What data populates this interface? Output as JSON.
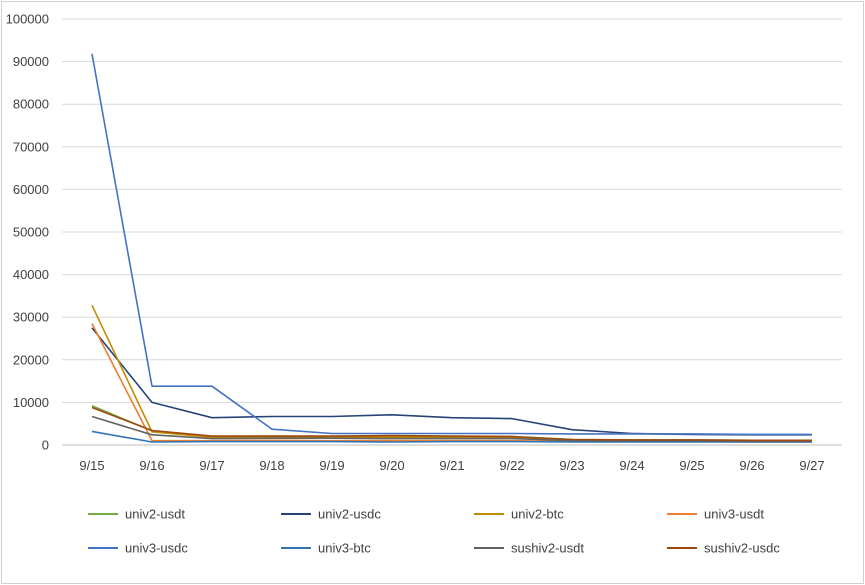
{
  "chart_data": {
    "type": "line",
    "title": "",
    "xlabel": "",
    "ylabel": "",
    "grid": true,
    "legend_position": "bottom",
    "ylim": [
      0,
      100000
    ],
    "y_ticks": [
      "0",
      "10000",
      "20000",
      "30000",
      "40000",
      "50000",
      "60000",
      "70000",
      "80000",
      "90000",
      "100000"
    ],
    "categories": [
      "9/15",
      "9/16",
      "9/17",
      "9/18",
      "9/19",
      "9/20",
      "9/21",
      "9/22",
      "9/23",
      "9/24",
      "9/25",
      "9/26",
      "9/27"
    ],
    "series": [
      {
        "name": "univ2-usdt",
        "color": "#70ad47",
        "values": [
          9200,
          3300,
          2000,
          2100,
          2000,
          2100,
          2000,
          2000,
          1300,
          1200,
          1200,
          1100,
          1100
        ]
      },
      {
        "name": "univ2-usdc",
        "color": "#264478",
        "values": [
          27500,
          10000,
          6400,
          6700,
          6700,
          7100,
          6400,
          6200,
          3600,
          2700,
          2500,
          2400,
          2400
        ]
      },
      {
        "name": "univ2-btc",
        "color": "#c38d00",
        "values": [
          32800,
          3100,
          1800,
          1900,
          1800,
          1800,
          1700,
          1700,
          1200,
          1100,
          1100,
          1000,
          1000
        ]
      },
      {
        "name": "univ3-usdt",
        "color": "#ed7d31",
        "values": [
          28500,
          1000,
          1000,
          1100,
          1000,
          1000,
          1000,
          1000,
          800,
          800,
          800,
          700,
          700
        ]
      },
      {
        "name": "univ3-usdc",
        "color": "#4472c4",
        "values": [
          91800,
          13800,
          13800,
          3700,
          2700,
          2700,
          2700,
          2700,
          2600,
          2600,
          2600,
          2500,
          2500
        ]
      },
      {
        "name": "univ3-btc",
        "color": "#2e75b6",
        "values": [
          3200,
          700,
          800,
          800,
          800,
          700,
          800,
          800,
          700,
          700,
          700,
          700,
          700
        ]
      },
      {
        "name": "sushiv2-usdt",
        "color": "#636363",
        "values": [
          6700,
          2400,
          1500,
          1600,
          1600,
          1500,
          1500,
          1500,
          1000,
          1000,
          1000,
          900,
          900
        ]
      },
      {
        "name": "sushiv2-usdc",
        "color": "#9e480e",
        "values": [
          8800,
          3400,
          2100,
          2100,
          2100,
          2200,
          2100,
          2000,
          1300,
          1200,
          1200,
          1100,
          1100
        ]
      }
    ]
  }
}
